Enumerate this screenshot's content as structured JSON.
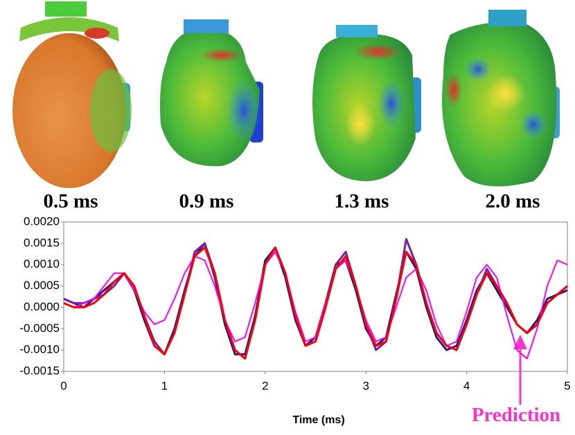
{
  "panels": [
    {
      "label": "0.5 ms"
    },
    {
      "label": "0.9 ms"
    },
    {
      "label": "1.3 ms"
    },
    {
      "label": "2.0 ms"
    }
  ],
  "chart_data": {
    "type": "line",
    "x_label": "Time (ms)",
    "annotation": "Prediction",
    "x": [
      0,
      0.1,
      0.2,
      0.3,
      0.4,
      0.5,
      0.6,
      0.7,
      0.8,
      0.9,
      1,
      1.1,
      1.2,
      1.3,
      1.4,
      1.5,
      1.6,
      1.7,
      1.8,
      1.9,
      2,
      2.1,
      2.2,
      2.3,
      2.4,
      2.5,
      2.6,
      2.7,
      2.8,
      2.9,
      3,
      3.1,
      3.2,
      3.3,
      3.4,
      3.5,
      3.6,
      3.7,
      3.8,
      3.9,
      4,
      4.1,
      4.2,
      4.3,
      4.4,
      4.5,
      4.6,
      4.7,
      4.8,
      4.9,
      5
    ],
    "series": [
      {
        "color": "#1a1a8c",
        "values": [
          0.0002,
          0.0001,
          0.0,
          0.0002,
          0.0004,
          0.0006,
          0.0008,
          0.0004,
          -0.0003,
          -0.0009,
          -0.0011,
          -0.0005,
          0.0004,
          0.0012,
          0.0015,
          0.0007,
          -0.0004,
          -0.0011,
          -0.0011,
          -0.0002,
          0.0011,
          0.0014,
          0.0007,
          -0.0003,
          -0.0009,
          -0.0007,
          0.0001,
          0.001,
          0.0011,
          0.0004,
          -0.0005,
          -0.0009,
          -0.0007,
          0.0003,
          0.0013,
          0.0009,
          0.0,
          -0.0007,
          -0.001,
          -0.0009,
          -0.0003,
          0.0004,
          0.0008,
          0.0004,
          0.0,
          -0.0004,
          -0.0006,
          -0.0003,
          0.0002,
          0.0003,
          0.0004
        ]
      },
      {
        "color": "#7a1fa0",
        "values": [
          0.0002,
          0.0001,
          0.0001,
          0.0002,
          0.0003,
          0.0005,
          0.0008,
          0.0005,
          -0.0002,
          -0.0008,
          -0.0011,
          -0.0006,
          0.0003,
          0.0013,
          0.0015,
          0.0008,
          -0.0003,
          -0.001,
          -0.0012,
          -0.0003,
          0.001,
          0.0014,
          0.0008,
          -0.0002,
          -0.0009,
          -0.0008,
          0.0,
          0.001,
          0.0013,
          0.0005,
          -0.0004,
          -0.001,
          -0.0008,
          0.0002,
          0.0016,
          0.001,
          0.0001,
          -0.0006,
          -0.0009,
          -0.001,
          -0.0004,
          0.0003,
          0.0009,
          0.0005,
          0.0001,
          -0.0004,
          -0.0006,
          -0.0004,
          0.0001,
          0.0003,
          0.0005
        ]
      },
      {
        "color": "#ff0000",
        "values": [
          0.0001,
          0.0,
          0.0,
          0.0001,
          0.0003,
          0.0006,
          0.0008,
          0.0005,
          -0.0002,
          -0.0009,
          -0.0011,
          -0.0006,
          0.0003,
          0.0012,
          0.0014,
          0.0008,
          -0.0003,
          -0.001,
          -0.0012,
          -0.0003,
          0.001,
          0.0014,
          0.0008,
          -0.0002,
          -0.0009,
          -0.0008,
          0.0,
          0.0009,
          0.0012,
          0.0005,
          -0.0004,
          -0.0009,
          -0.0008,
          0.0002,
          0.0013,
          0.001,
          0.0001,
          -0.0006,
          -0.0009,
          -0.001,
          -0.0004,
          0.0003,
          0.0008,
          0.0005,
          0.0001,
          -0.0004,
          -0.0006,
          -0.0004,
          0.0001,
          0.0003,
          0.0005
        ]
      },
      {
        "color": "#ff00ff",
        "values": [
          0.0001,
          0.0,
          0.0001,
          0.0002,
          0.0005,
          0.0008,
          0.0008,
          0.0004,
          -0.0001,
          -0.0004,
          -0.0003,
          0.0002,
          0.0008,
          0.0012,
          0.0011,
          0.0005,
          -0.0003,
          -0.0008,
          -0.0007,
          0.0001,
          0.001,
          0.0013,
          0.0008,
          -0.0001,
          -0.0008,
          -0.0007,
          0.0001,
          0.0009,
          0.0011,
          0.0005,
          -0.0003,
          -0.0008,
          -0.0007,
          0.0,
          0.0007,
          0.0009,
          0.0004,
          -0.0004,
          -0.0009,
          -0.0008,
          -0.0001,
          0.0007,
          0.001,
          0.0007,
          -0.0002,
          -0.001,
          -0.0012,
          -0.0005,
          0.0005,
          0.0011,
          0.001
        ]
      }
    ],
    "xlim": [
      0,
      5
    ],
    "xticks": [
      0,
      1,
      2,
      3,
      4,
      5
    ],
    "ylim": [
      -0.0015,
      0.002
    ],
    "yticks": [
      {
        "value": 0.002,
        "label": "0.0020"
      },
      {
        "value": 0.0015,
        "label": "0.0015"
      },
      {
        "value": 0.001,
        "label": "0.0010"
      },
      {
        "value": 0.0005,
        "label": "0.0005"
      },
      {
        "value": 0,
        "label": "0.0000"
      },
      {
        "value": -0.0005,
        "label": "-0.0005"
      },
      {
        "value": -0.001,
        "label": "-0.0010"
      },
      {
        "value": -0.0015,
        "label": "-0.0015"
      }
    ],
    "grid": false
  }
}
